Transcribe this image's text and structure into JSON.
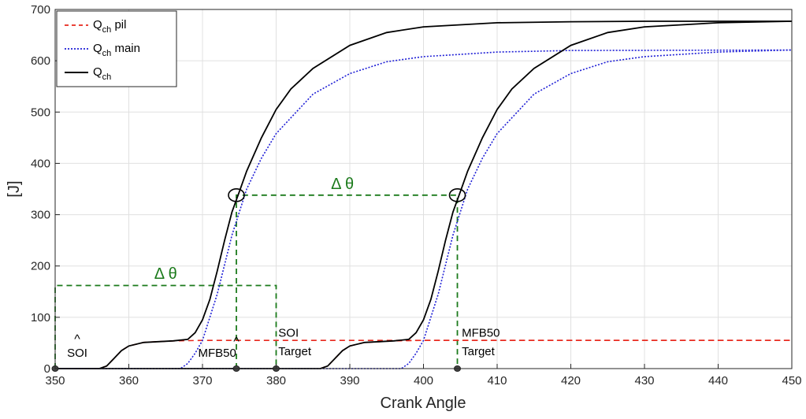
{
  "chart_data": {
    "type": "line",
    "xlabel": "Crank Angle",
    "ylabel": "[J]",
    "xlim": [
      350,
      450
    ],
    "ylim": [
      0,
      700
    ],
    "xticks": [
      350,
      360,
      370,
      380,
      390,
      400,
      410,
      420,
      430,
      440,
      450
    ],
    "yticks": [
      0,
      100,
      200,
      300,
      400,
      500,
      600,
      700
    ],
    "x_tick_labels": [
      "350",
      "360",
      "370",
      "380",
      "390",
      "400",
      "410",
      "420",
      "430",
      "440",
      "450"
    ],
    "y_tick_labels": [
      "0",
      "100",
      "200",
      "300",
      "400",
      "500",
      "600",
      "700"
    ],
    "grid": true,
    "legend_position": "top-left",
    "legend": [
      {
        "base": "Q",
        "sub": "ch",
        "suffix": " pil",
        "style": "dashed",
        "color": "#e8271c"
      },
      {
        "base": "Q",
        "sub": "ch",
        "suffix": " main",
        "style": "dotted",
        "color": "#1f1fd6"
      },
      {
        "base": "Q",
        "sub": "ch",
        "suffix": "",
        "style": "solid",
        "color": "#000000"
      }
    ],
    "series": [
      {
        "name": "Qch pil",
        "color": "#e8271c",
        "style": "dashed",
        "points": [
          [
            350,
            0
          ],
          [
            356,
            0
          ],
          [
            357,
            5
          ],
          [
            358,
            20
          ],
          [
            359,
            35
          ],
          [
            360,
            44
          ],
          [
            362,
            51
          ],
          [
            366,
            54
          ],
          [
            370,
            55
          ],
          [
            400,
            55
          ],
          [
            450,
            55
          ]
        ]
      },
      {
        "name": "Qch main",
        "color": "#1f1fd6",
        "style": "dotted",
        "points": [
          [
            350,
            0
          ],
          [
            367,
            0
          ],
          [
            368,
            10
          ],
          [
            369,
            30
          ],
          [
            370,
            55
          ],
          [
            372,
            145
          ],
          [
            374,
            260
          ],
          [
            376,
            350
          ],
          [
            378,
            410
          ],
          [
            380,
            458
          ],
          [
            385,
            535
          ],
          [
            390,
            575
          ],
          [
            395,
            598
          ],
          [
            400,
            608
          ],
          [
            410,
            617
          ],
          [
            420,
            620
          ],
          [
            450,
            621
          ]
        ]
      },
      {
        "name": "Qch",
        "color": "#000000",
        "style": "solid",
        "points": [
          [
            350,
            0
          ],
          [
            356,
            0
          ],
          [
            357,
            5
          ],
          [
            358,
            20
          ],
          [
            359,
            35
          ],
          [
            360,
            44
          ],
          [
            362,
            51
          ],
          [
            366,
            54
          ],
          [
            368,
            57
          ],
          [
            369,
            70
          ],
          [
            370,
            95
          ],
          [
            371,
            135
          ],
          [
            372,
            190
          ],
          [
            373,
            250
          ],
          [
            374,
            305
          ],
          [
            375,
            345
          ],
          [
            376,
            385
          ],
          [
            378,
            450
          ],
          [
            380,
            505
          ],
          [
            382,
            545
          ],
          [
            385,
            585
          ],
          [
            390,
            630
          ],
          [
            395,
            655
          ],
          [
            400,
            666
          ],
          [
            410,
            674
          ],
          [
            420,
            676
          ],
          [
            430,
            677
          ],
          [
            450,
            677
          ]
        ]
      },
      {
        "name": "Qch pil (shifted)",
        "color": "#e8271c",
        "style": "dashed",
        "points": [
          [
            386,
            0
          ],
          [
            387,
            5
          ],
          [
            388,
            20
          ],
          [
            389,
            35
          ],
          [
            390,
            44
          ],
          [
            392,
            51
          ],
          [
            396,
            54
          ],
          [
            400,
            55
          ],
          [
            450,
            55
          ]
        ]
      },
      {
        "name": "Qch main (shifted)",
        "color": "#1f1fd6",
        "style": "dotted",
        "points": [
          [
            350,
            0
          ],
          [
            397,
            0
          ],
          [
            398,
            10
          ],
          [
            399,
            30
          ],
          [
            400,
            55
          ],
          [
            402,
            145
          ],
          [
            404,
            260
          ],
          [
            406,
            350
          ],
          [
            408,
            410
          ],
          [
            410,
            458
          ],
          [
            415,
            535
          ],
          [
            420,
            575
          ],
          [
            425,
            598
          ],
          [
            430,
            608
          ],
          [
            440,
            617
          ],
          [
            450,
            621
          ]
        ]
      },
      {
        "name": "Qch (shifted)",
        "color": "#000000",
        "style": "solid",
        "points": [
          [
            350,
            0
          ],
          [
            386,
            0
          ],
          [
            387,
            5
          ],
          [
            388,
            20
          ],
          [
            389,
            35
          ],
          [
            390,
            44
          ],
          [
            392,
            51
          ],
          [
            396,
            54
          ],
          [
            398,
            57
          ],
          [
            399,
            70
          ],
          [
            400,
            95
          ],
          [
            401,
            135
          ],
          [
            402,
            190
          ],
          [
            403,
            250
          ],
          [
            404,
            305
          ],
          [
            405,
            345
          ],
          [
            406,
            385
          ],
          [
            408,
            450
          ],
          [
            410,
            505
          ],
          [
            412,
            545
          ],
          [
            415,
            585
          ],
          [
            420,
            630
          ],
          [
            425,
            655
          ],
          [
            430,
            666
          ],
          [
            440,
            674
          ],
          [
            450,
            677
          ]
        ]
      }
    ],
    "guides": [
      {
        "points": [
          [
            350,
            0
          ],
          [
            350,
            162
          ],
          [
            380,
            162
          ],
          [
            380,
            0
          ]
        ]
      },
      {
        "points": [
          [
            374.6,
            0
          ],
          [
            374.6,
            338
          ],
          [
            404.6,
            338
          ],
          [
            404.6,
            0
          ]
        ]
      }
    ],
    "circles": [
      [
        374.6,
        338
      ],
      [
        404.6,
        338
      ]
    ],
    "markers": [
      [
        350,
        0
      ],
      [
        374.6,
        0
      ],
      [
        380,
        0
      ],
      [
        404.6,
        0
      ]
    ],
    "annotations": [
      {
        "text": "Δ θ",
        "x": 365,
        "y": 175,
        "color": "#1b7a1b",
        "size": 20,
        "anchor": "middle"
      },
      {
        "text": "Δ θ",
        "x": 389,
        "y": 350,
        "color": "#1b7a1b",
        "size": 20,
        "anchor": "middle"
      },
      {
        "text": "^",
        "x": 353,
        "y": 50,
        "color": "#000000",
        "size": 16,
        "anchor": "middle"
      },
      {
        "text": "SOI",
        "x": 353,
        "y": 23,
        "color": "#000000",
        "size": 15,
        "anchor": "middle"
      },
      {
        "text": "^",
        "x": 374.6,
        "y": 45,
        "color": "#000000",
        "size": 16,
        "anchor": "middle"
      },
      {
        "text": "MFB50",
        "x": 372,
        "y": 23,
        "color": "#000000",
        "size": 15,
        "anchor": "middle"
      },
      {
        "text": "SOI",
        "x": 380.3,
        "y": 62,
        "color": "#000000",
        "size": 15,
        "anchor": "start"
      },
      {
        "text": "Target",
        "x": 380.3,
        "y": 26,
        "color": "#000000",
        "size": 15,
        "anchor": "start"
      },
      {
        "text": "MFB50",
        "x": 405.2,
        "y": 62,
        "color": "#000000",
        "size": 15,
        "anchor": "start"
      },
      {
        "text": "Target",
        "x": 405.2,
        "y": 26,
        "color": "#000000",
        "size": 15,
        "anchor": "start"
      }
    ]
  }
}
